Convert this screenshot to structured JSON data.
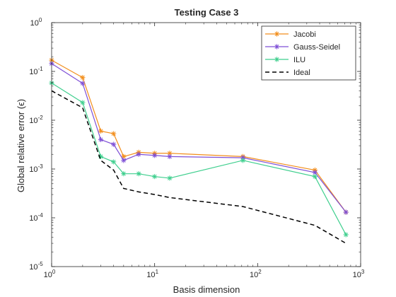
{
  "chart_data": {
    "type": "line",
    "title": "Testing Case 3",
    "xlabel": "Basis dimension",
    "ylabel": "Global relative error (ϵ)",
    "xscale": "log",
    "yscale": "log",
    "xlim": [
      1,
      1000
    ],
    "ylim": [
      1e-05,
      1
    ],
    "x_ticks": [
      1,
      10,
      100,
      1000
    ],
    "x_tick_labels": [
      {
        "base": "10",
        "exp": "0"
      },
      {
        "base": "10",
        "exp": "1"
      },
      {
        "base": "10",
        "exp": "2"
      },
      {
        "base": "10",
        "exp": "3"
      }
    ],
    "y_ticks": [
      1e-05,
      0.0001,
      0.001,
      0.01,
      0.1,
      1
    ],
    "y_tick_labels": [
      {
        "base": "10",
        "exp": "-5"
      },
      {
        "base": "10",
        "exp": "-4"
      },
      {
        "base": "10",
        "exp": "-3"
      },
      {
        "base": "10",
        "exp": "-2"
      },
      {
        "base": "10",
        "exp": "-1"
      },
      {
        "base": "10",
        "exp": "0"
      }
    ],
    "grid": false,
    "legend_position": "top-right",
    "series": [
      {
        "name": "Jacobi",
        "color": "#f28e1c",
        "marker": "asterisk",
        "x": [
          1,
          2,
          3,
          4,
          5,
          7,
          10,
          14,
          72,
          360,
          720
        ],
        "y": [
          0.17,
          0.075,
          0.006,
          0.0053,
          0.0018,
          0.0022,
          0.0021,
          0.0021,
          0.0018,
          0.00095,
          0.00013
        ]
      },
      {
        "name": "Gauss-Seidel",
        "color": "#7e4fd6",
        "marker": "asterisk",
        "x": [
          1,
          2,
          3,
          4,
          5,
          7,
          10,
          14,
          72,
          360,
          720
        ],
        "y": [
          0.145,
          0.057,
          0.004,
          0.0032,
          0.0015,
          0.002,
          0.0019,
          0.0018,
          0.0017,
          0.00085,
          0.00013
        ]
      },
      {
        "name": "ILU",
        "color": "#3fcf8e",
        "marker": "asterisk",
        "x": [
          1,
          2,
          3,
          4,
          5,
          7,
          10,
          14,
          72,
          360,
          720
        ],
        "y": [
          0.058,
          0.023,
          0.0018,
          0.0014,
          0.0008,
          0.0008,
          0.0007,
          0.00065,
          0.0015,
          0.0007,
          4.5e-05
        ]
      },
      {
        "name": "Ideal",
        "color": "#000000",
        "marker": "none",
        "dashed": true,
        "x": [
          1,
          2,
          3,
          4,
          5,
          7,
          10,
          14,
          72,
          360,
          720
        ],
        "y": [
          0.04,
          0.018,
          0.0015,
          0.00095,
          0.0004,
          0.00034,
          0.0003,
          0.00026,
          0.00017,
          7e-05,
          3e-05
        ]
      }
    ]
  }
}
